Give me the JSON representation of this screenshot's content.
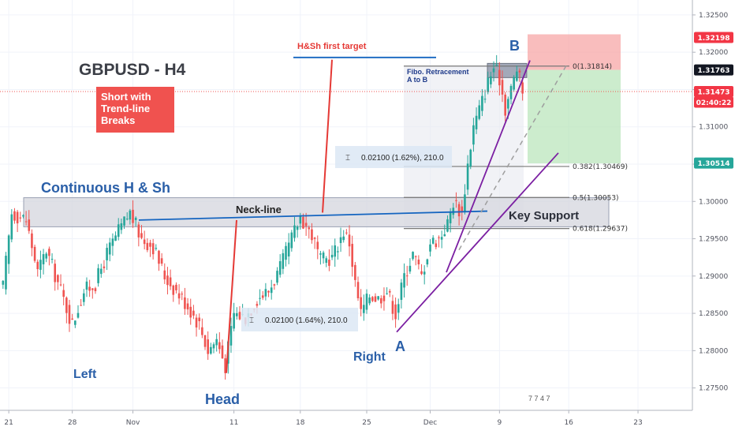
{
  "chart_data": {
    "type": "candlestick",
    "title": "GBPUSD - H4",
    "ylim": [
      1.272,
      1.327
    ],
    "y_ticks": [
      "1.32500",
      "1.32000",
      "1.31500",
      "1.31000",
      "1.30500",
      "1.30000",
      "1.29500",
      "1.29000",
      "1.28500",
      "1.28000",
      "1.27500"
    ],
    "y_tick_values": [
      1.325,
      1.32,
      1.315,
      1.31,
      1.305,
      1.3,
      1.295,
      1.29,
      1.285,
      1.28,
      1.275
    ],
    "x_ticks": [
      "21",
      "28",
      "Nov",
      "11",
      "18",
      "25",
      "Dec",
      "9",
      "16",
      "23"
    ],
    "x_tick_index": [
      2,
      24,
      45,
      80,
      103,
      126,
      148,
      172,
      196,
      220
    ],
    "total_bars": 240,
    "price_badges": [
      {
        "value": "1.32198",
        "price": 1.32198,
        "color": "#f23645"
      },
      {
        "value": "1.31763",
        "price": 1.31763,
        "color": "#131722"
      },
      {
        "value": "1.31473",
        "price": 1.31473,
        "color": "#f23645"
      },
      {
        "value": "02:40:22",
        "price": 1.3133,
        "color": "#f23645"
      },
      {
        "value": "1.30514",
        "price": 1.30514,
        "color": "#26a69a"
      }
    ],
    "waypoints": [
      [
        0,
        1.2885
      ],
      [
        3,
        1.2985
      ],
      [
        8,
        1.2975
      ],
      [
        12,
        1.2905
      ],
      [
        15,
        1.2935
      ],
      [
        20,
        1.288
      ],
      [
        24,
        1.2835
      ],
      [
        28,
        1.288
      ],
      [
        32,
        1.289
      ],
      [
        36,
        1.293
      ],
      [
        40,
        1.296
      ],
      [
        44,
        1.2985
      ],
      [
        48,
        1.295
      ],
      [
        52,
        1.294
      ],
      [
        56,
        1.29
      ],
      [
        60,
        1.288
      ],
      [
        64,
        1.286
      ],
      [
        68,
        1.2835
      ],
      [
        71,
        1.28
      ],
      [
        74,
        1.2815
      ],
      [
        77,
        1.278
      ],
      [
        80,
        1.285
      ],
      [
        84,
        1.2845
      ],
      [
        88,
        1.287
      ],
      [
        92,
        1.288
      ],
      [
        96,
        1.291
      ],
      [
        100,
        1.295
      ],
      [
        103,
        1.298
      ],
      [
        107,
        1.2955
      ],
      [
        110,
        1.292
      ],
      [
        114,
        1.2925
      ],
      [
        118,
        1.296
      ],
      [
        120,
        1.2945
      ],
      [
        122,
        1.289
      ],
      [
        124,
        1.285
      ],
      [
        127,
        1.2875
      ],
      [
        130,
        1.287
      ],
      [
        133,
        1.288
      ],
      [
        136,
        1.285
      ],
      [
        139,
        1.29
      ],
      [
        142,
        1.293
      ],
      [
        145,
        1.29
      ],
      [
        148,
        1.2945
      ],
      [
        151,
        1.295
      ],
      [
        154,
        1.297
      ],
      [
        156,
        1.3
      ],
      [
        159,
        1.2985
      ],
      [
        161,
        1.305
      ],
      [
        163,
        1.31
      ],
      [
        166,
        1.3135
      ],
      [
        168,
        1.316
      ],
      [
        170,
        1.318
      ],
      [
        172,
        1.3165
      ],
      [
        174,
        1.3125
      ],
      [
        176,
        1.315
      ],
      [
        178,
        1.3178
      ],
      [
        180,
        1.3147
      ]
    ],
    "annotations": {
      "title": "GBPUSD - H4",
      "strategy_line1": "Short with",
      "strategy_line2": "Trend-line",
      "strategy_line3": "Breaks",
      "pattern": "Continuous H & Sh",
      "neckline": "Neck-line",
      "key_support": "Key Support",
      "target": "H&Sh first target",
      "fibo_line1": "Fibo. Retracement",
      "fibo_line2": "A to B",
      "label_left": "Left",
      "label_head": "Head",
      "label_right": "Right",
      "label_a": "A",
      "label_b": "B",
      "measure_top": "0.02100 (1.62%), 210.0",
      "measure_bottom": "0.02100 (1.64%), 210.0"
    },
    "fib_levels": [
      {
        "label": "0(1.31814)",
        "price": 1.31814
      },
      {
        "label": "0.382(1.30469)",
        "price": 1.30469
      },
      {
        "label": "0.5(1.30053)",
        "price": 1.30053
      },
      {
        "label": "0.618(1.29637)",
        "price": 1.29637
      }
    ],
    "current_price": 1.31473,
    "stop_price": 1.32198,
    "entry_price": 1.31763,
    "target_price": 1.30514,
    "flags_text": "7 7 4 7",
    "colors": {
      "up": "#26a69a",
      "down": "#ef5350",
      "trend": "#7b1fa2",
      "neck": "#1565c0",
      "target": "#e53935",
      "zone": "#9aa1b3"
    }
  }
}
